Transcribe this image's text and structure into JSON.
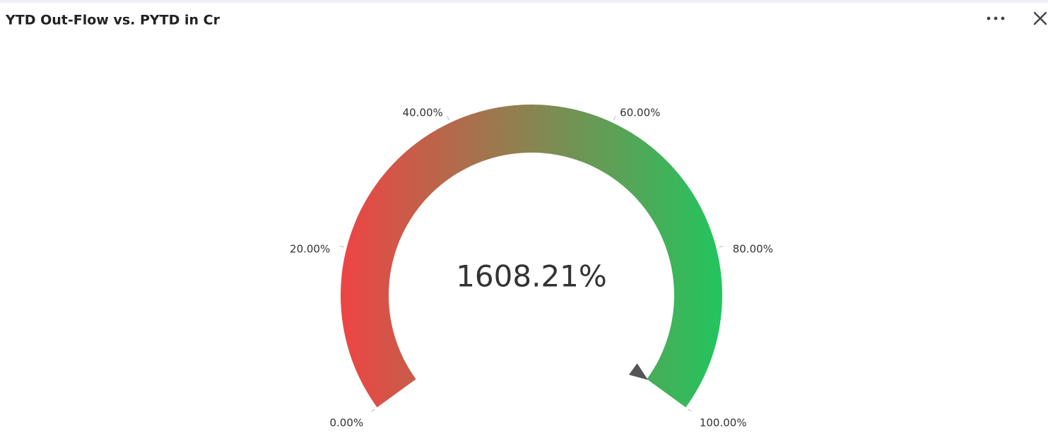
{
  "chart_data": {
    "type": "gauge",
    "title": "YTD Out-Flow vs. PYTD in Cr",
    "value": 1608.21,
    "value_label": "1608.21%",
    "ylim": [
      0,
      100
    ],
    "yticks": [
      {
        "value": 0,
        "label": "0.00%"
      },
      {
        "value": 20,
        "label": "20.00%"
      },
      {
        "value": 40,
        "label": "40.00%"
      },
      {
        "value": 60,
        "label": "60.00%"
      },
      {
        "value": 80,
        "label": "80.00%"
      },
      {
        "value": 100,
        "label": "100.00%"
      }
    ],
    "colors": [
      "#ef4444",
      "#22c55e"
    ]
  }
}
